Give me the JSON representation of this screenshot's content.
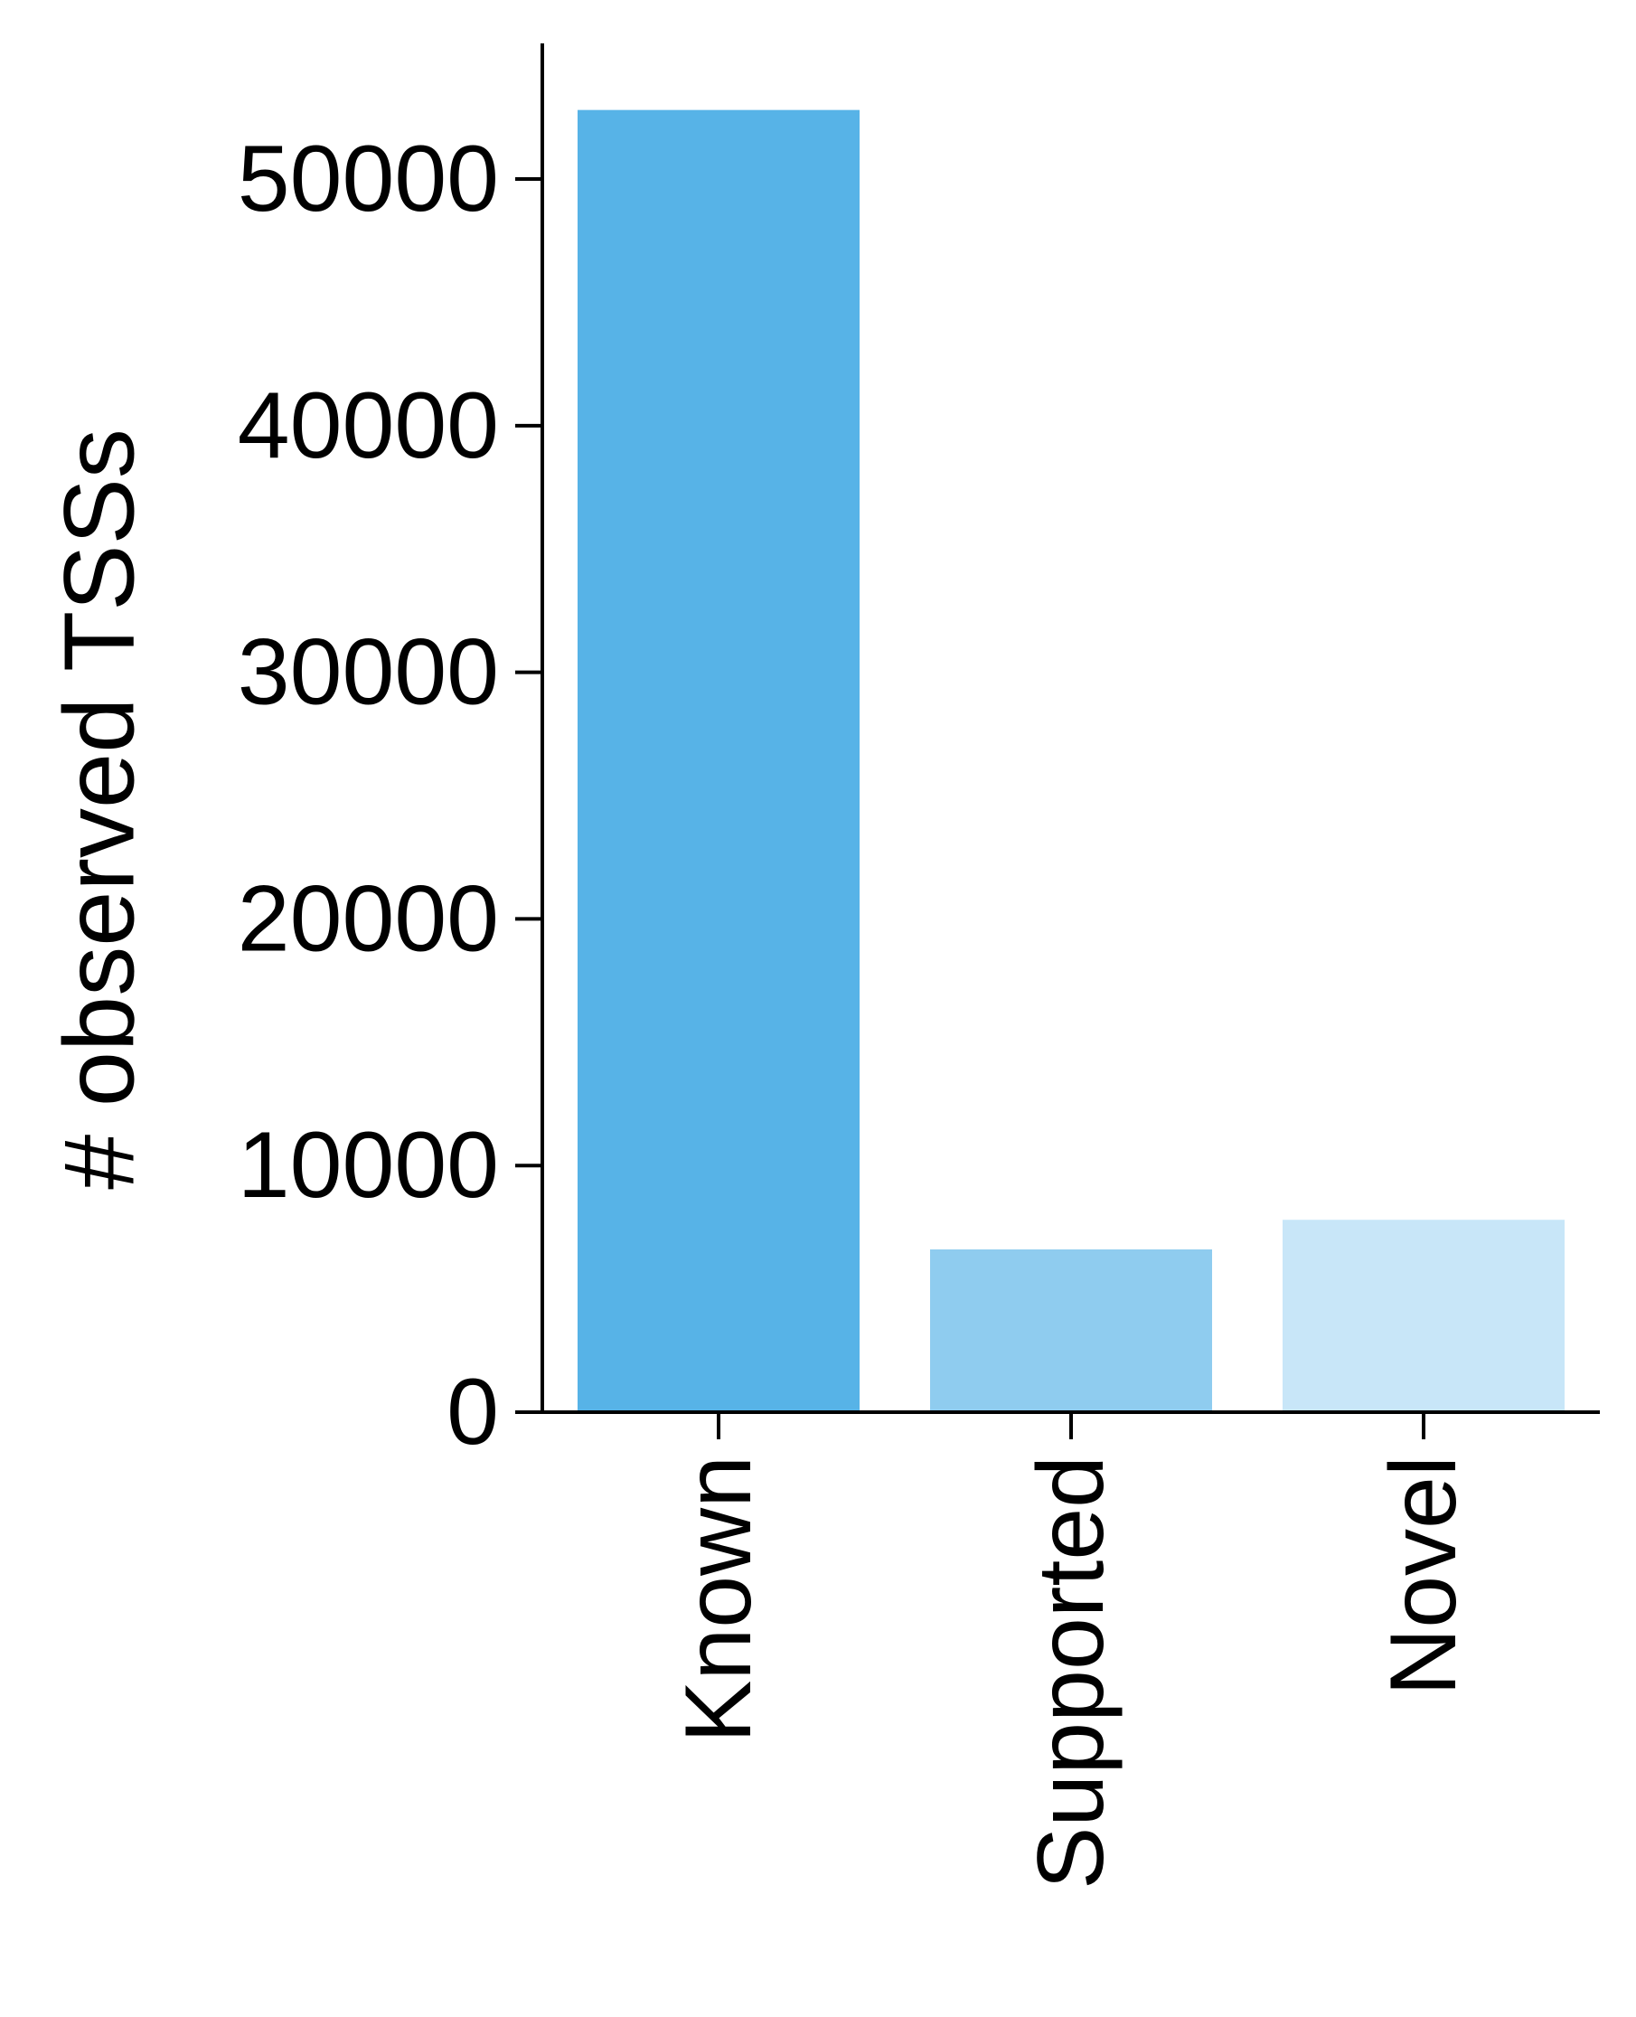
{
  "chart_data": {
    "type": "bar",
    "categories": [
      "Known",
      "Supported",
      "Novel"
    ],
    "values": [
      52800,
      6600,
      7800
    ],
    "colors": [
      "#57b3e7",
      "#8fccef",
      "#c8e6f8"
    ],
    "title": "",
    "xlabel": "",
    "ylabel": "# observed TSSs",
    "ylim": [
      0,
      55500
    ],
    "yticks": [
      0,
      10000,
      20000,
      30000,
      40000,
      50000
    ],
    "ytick_labels": [
      "0",
      "10000",
      "20000",
      "30000",
      "40000",
      "50000"
    ],
    "xtick_rotation": "vertical",
    "grid": false,
    "legend": "none",
    "spines": [
      "left",
      "bottom"
    ]
  }
}
